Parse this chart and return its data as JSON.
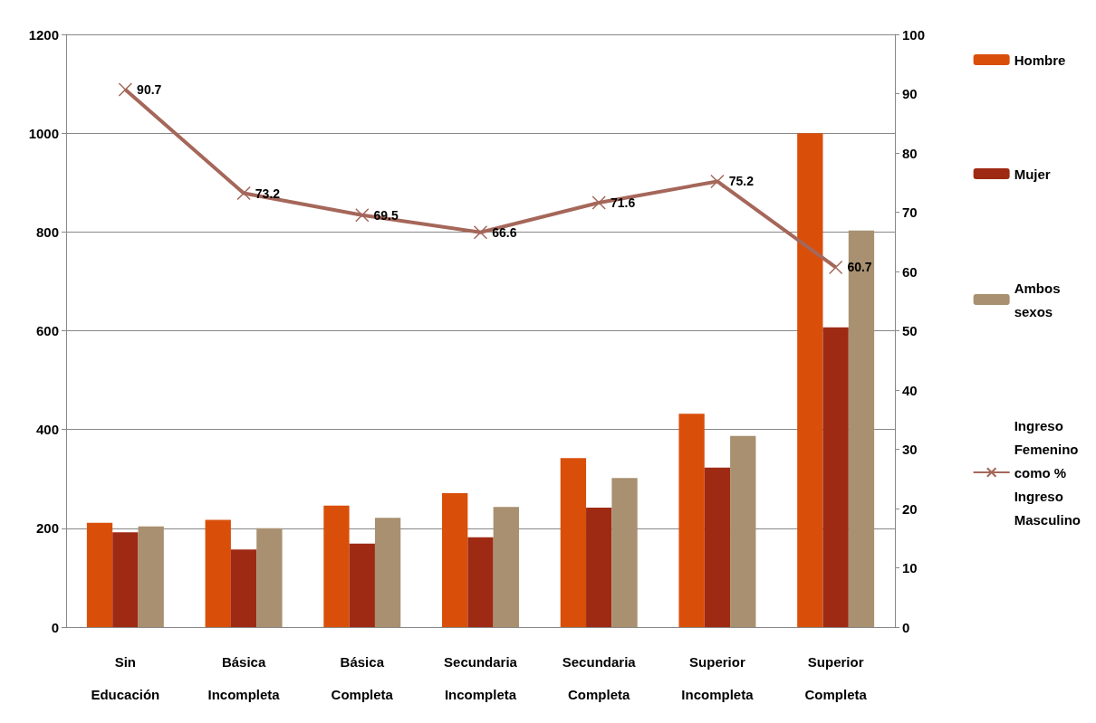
{
  "chart_data": {
    "type": "bar",
    "categories": [
      "Sin\nEducación",
      "Básica\nIncompleta",
      "Básica\nCompleta",
      "Secundaria\nIncompleta",
      "Secundaria\nCompleta",
      "Superior\nIncompleta",
      "Superior\nCompleta"
    ],
    "series": [
      {
        "name": "Hombre",
        "color": "#d94f0a",
        "values": [
          211,
          217,
          246,
          271,
          342,
          432,
          1000
        ]
      },
      {
        "name": "Mujer",
        "color": "#9e2a14",
        "values": [
          192,
          157,
          169,
          182,
          242,
          323,
          607
        ]
      },
      {
        "name": "Ambos\nsexos",
        "color": "#a89070",
        "values": [
          204,
          200,
          221,
          243,
          302,
          387,
          803
        ]
      },
      {
        "name": "Ingreso\nFemenino\ncomo %\nIngreso\nMasculino",
        "type": "line",
        "axis": "y2",
        "color": "#a5675a",
        "marker": "cross",
        "values": [
          90.7,
          73.2,
          69.5,
          66.6,
          71.6,
          75.2,
          60.7
        ],
        "data_labels": true
      }
    ],
    "ylim": [
      0,
      1200
    ],
    "yticks": [
      0,
      200,
      400,
      600,
      800,
      1000,
      1200
    ],
    "y2lim": [
      0,
      100
    ],
    "y2ticks": [
      0,
      10,
      20,
      30,
      40,
      50,
      60,
      70,
      80,
      90,
      100
    ],
    "grid": "y",
    "legend": "right"
  }
}
